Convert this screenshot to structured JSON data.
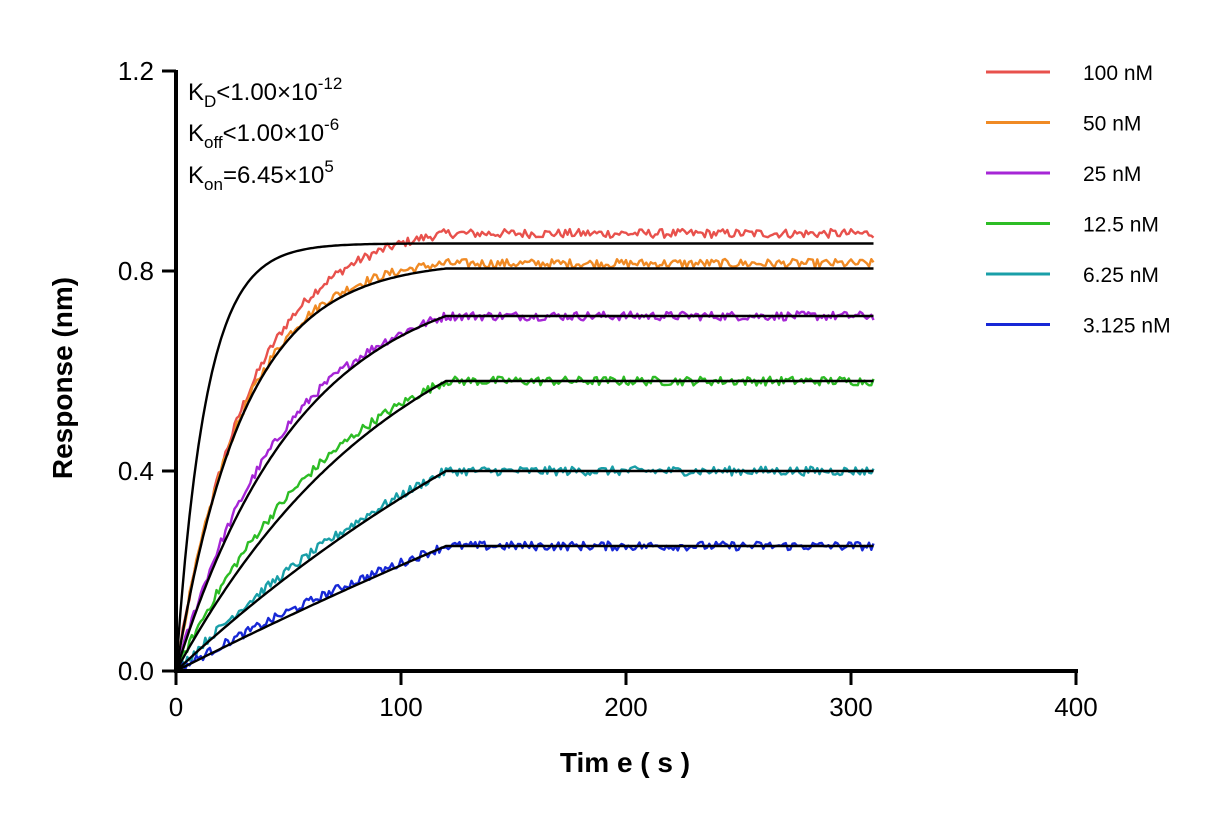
{
  "chart_data": {
    "type": "line",
    "xlabel": "Tim e ( s )",
    "ylabel": "Response (nm)",
    "xlim": [
      0,
      400
    ],
    "ylim": [
      0,
      1.2
    ],
    "xticks": [
      "0",
      "100",
      "200",
      "300",
      "400"
    ],
    "yticks": [
      "0.0",
      "0.4",
      "0.8",
      "1.2"
    ],
    "grid": false,
    "legend_position": "top-right",
    "association_end": 120,
    "end_time": 310,
    "annotations": {
      "kd": {
        "main": "K",
        "sub": "D",
        "rest": "<1.00×10",
        "sup": "-12"
      },
      "koff": {
        "main": "K",
        "sub": "off",
        "rest": "<1.00×10",
        "sup": "-6"
      },
      "kon": {
        "main": "K",
        "sub": "on",
        "rest": "=6.45×10",
        "sup": "5"
      }
    },
    "fit_color": "#000000",
    "series": [
      {
        "name": "100 nM",
        "color": "#e8514c",
        "plateau": 0.855,
        "fit_k": 0.075,
        "data_k": 0.03,
        "data_offset": 0.02
      },
      {
        "name": "50 nM",
        "color": "#f08a24",
        "plateau": 0.805,
        "fit_k": 0.033,
        "data_k": 0.033,
        "data_offset": 0.01
      },
      {
        "name": "25 nM",
        "color": "#a626d6",
        "plateau": 0.71,
        "fit_k": 0.018,
        "data_k": 0.02,
        "data_offset": 0.0
      },
      {
        "name": "12.5 nM",
        "color": "#2dbd25",
        "plateau": 0.58,
        "fit_k": 0.01,
        "data_k": 0.013,
        "data_offset": 0.0
      },
      {
        "name": "6.25 nM",
        "color": "#199fa8",
        "plateau": 0.4,
        "fit_k": 0.004,
        "data_k": 0.006,
        "data_offset": 0.0
      },
      {
        "name": "3.125 nM",
        "color": "#1728d6",
        "plateau": 0.25,
        "fit_k": 0.0015,
        "data_k": 0.004,
        "data_offset": 0.0
      }
    ]
  }
}
